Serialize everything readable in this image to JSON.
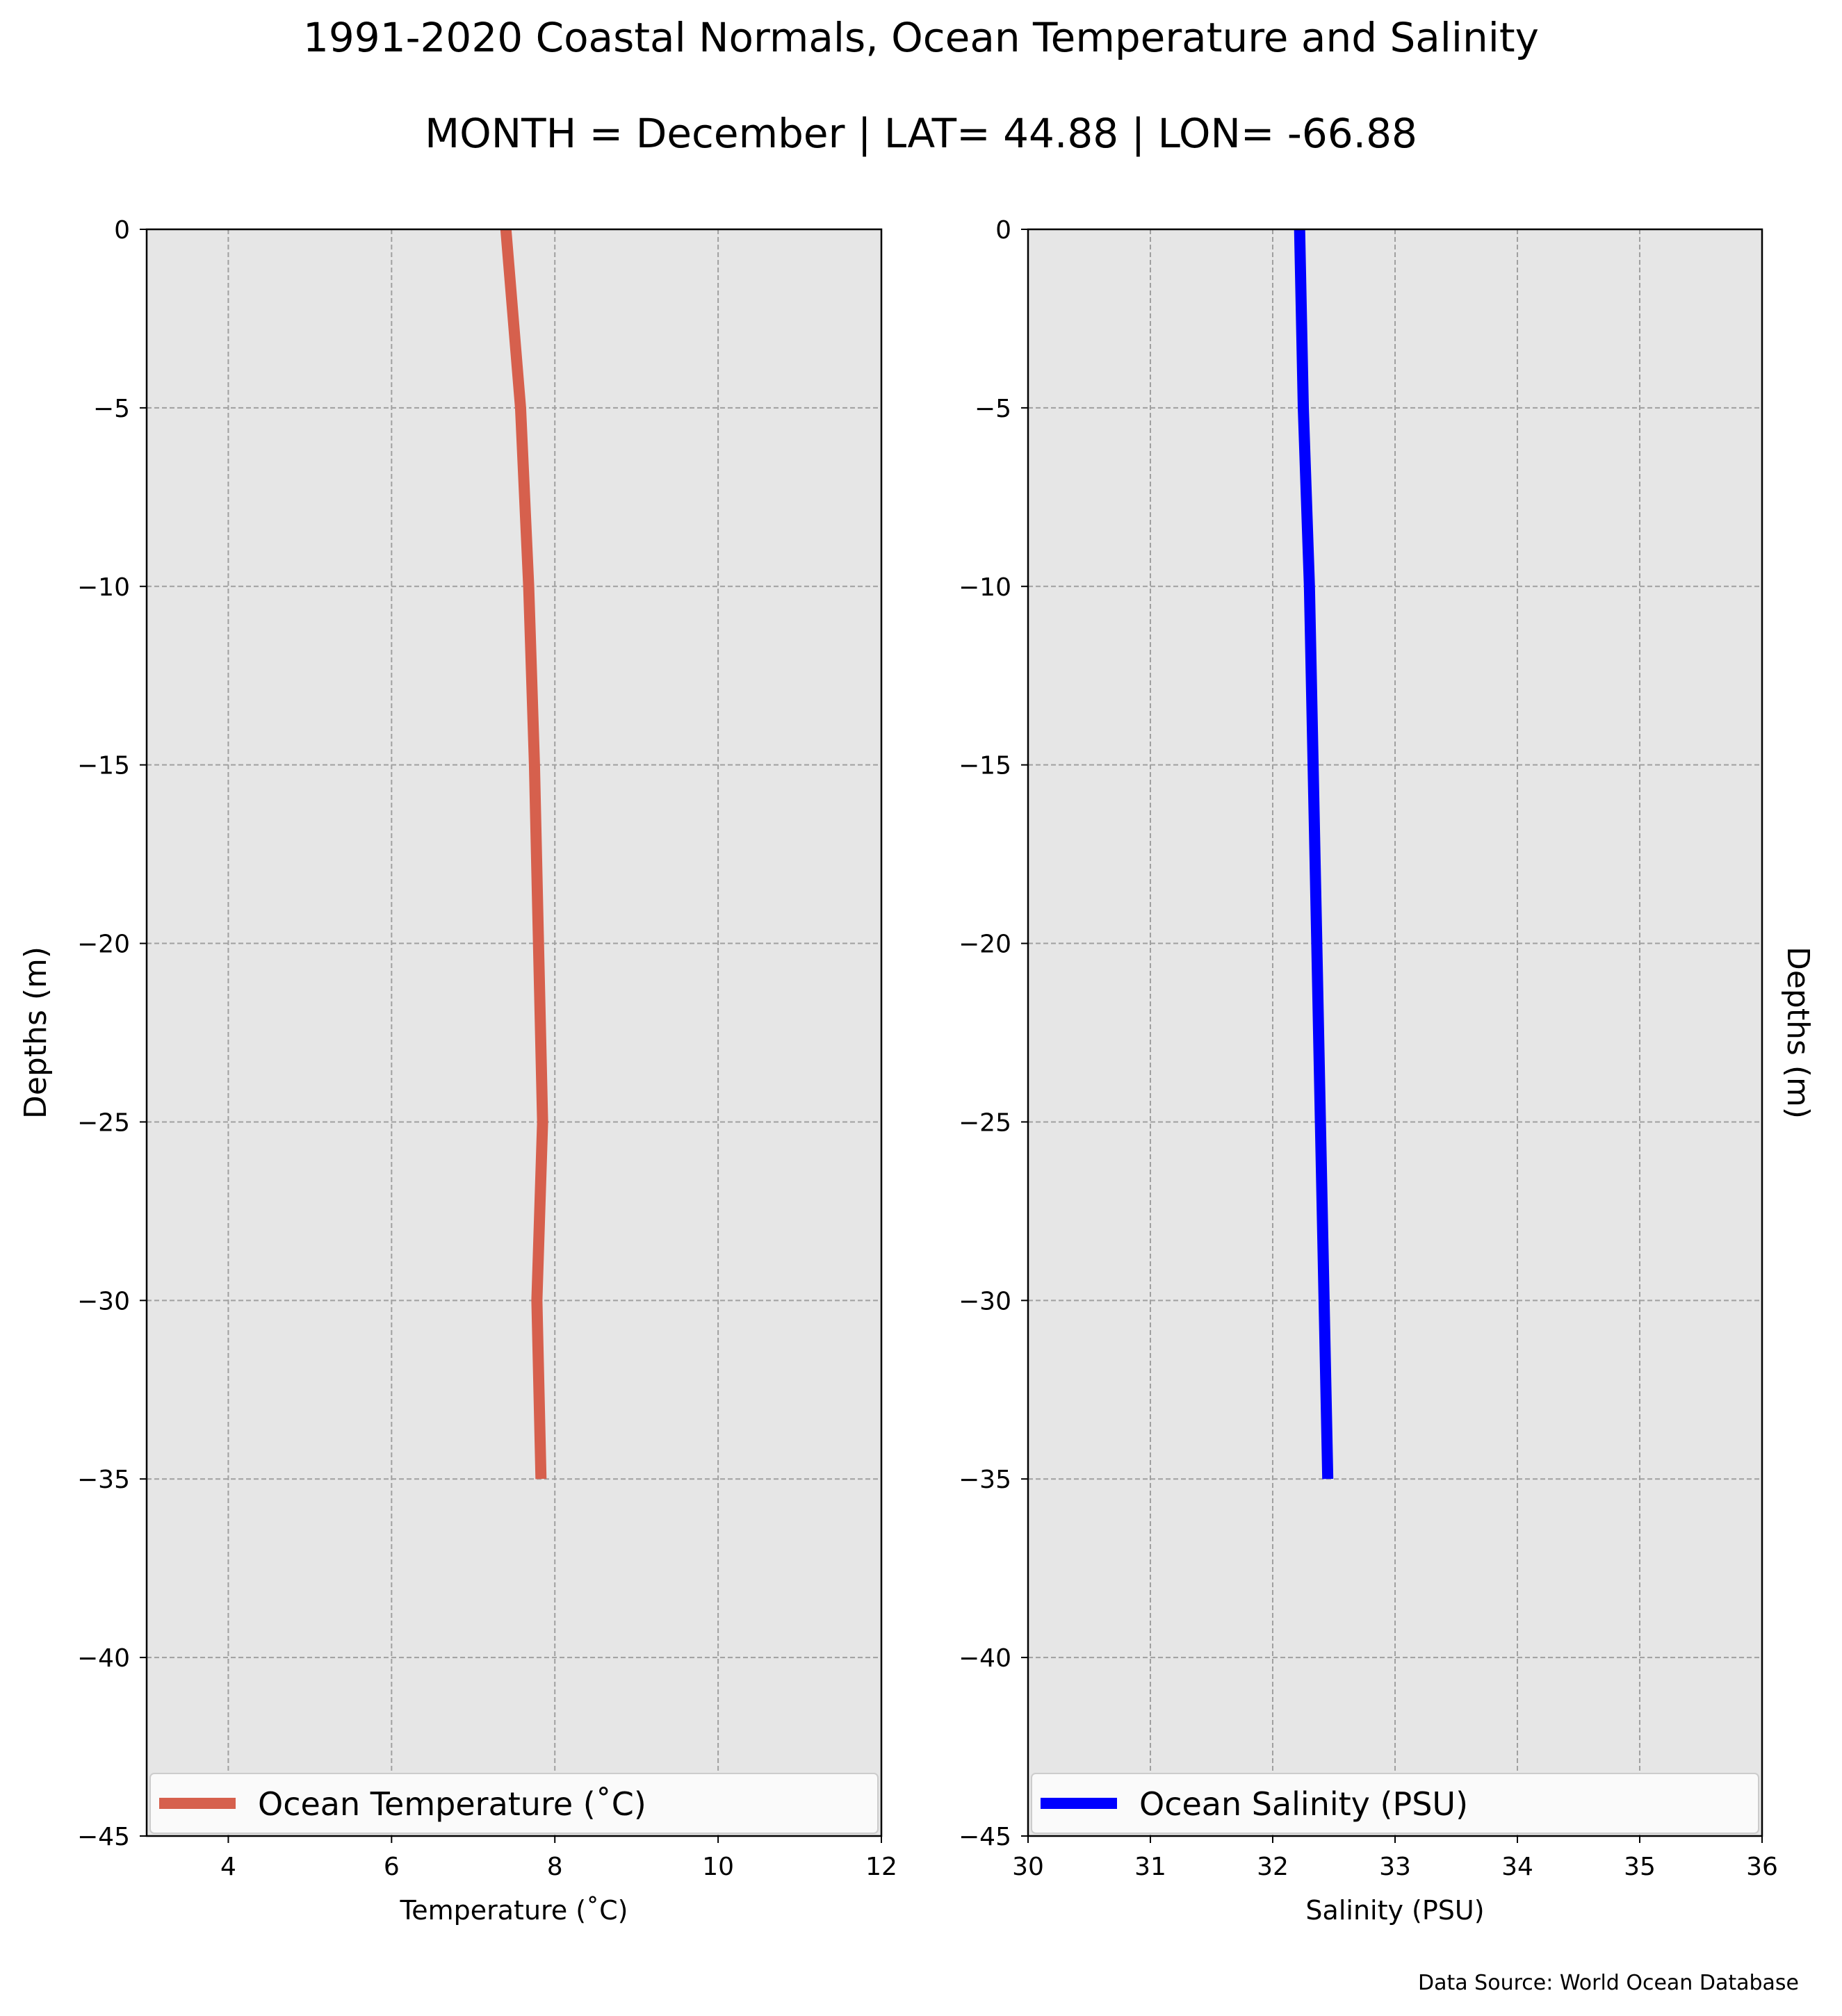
{
  "title": "1991-2020 Coastal Normals, Ocean Temperature and Salinity",
  "subtitle": "MONTH = December | LAT= 44.88 | LON= -66.88",
  "source": "Data Source: World Ocean Database",
  "chart_data": [
    {
      "type": "line",
      "xlabel": "Temperature ($^\\circ$C)",
      "xlabel_display": "Temperature (˚C)",
      "ylabel": "Depths (m)",
      "xlim": [
        3,
        12
      ],
      "ylim": [
        -45,
        0
      ],
      "xticks": [
        4,
        6,
        8,
        10,
        12
      ],
      "xtick_labels": [
        "4",
        "6",
        "8",
        "10",
        "12"
      ],
      "yticks": [
        0,
        -5,
        -10,
        -15,
        -20,
        -25,
        -30,
        -35,
        -40,
        -45
      ],
      "ytick_labels": [
        "0",
        "−5",
        "−10",
        "−15",
        "−20",
        "−25",
        "−30",
        "−35",
        "−40",
        "−45"
      ],
      "grid": true,
      "legend": "bottom",
      "series": [
        {
          "name": "Ocean Temperature (˚C)",
          "color": "#d6604d",
          "x": [
            7.4,
            7.58,
            7.68,
            7.75,
            7.8,
            7.85,
            7.78,
            7.83
          ],
          "y": [
            0,
            -5,
            -10,
            -15,
            -20,
            -25,
            -30,
            -35
          ]
        }
      ]
    },
    {
      "type": "line",
      "xlabel": "Salinity (PSU)",
      "ylabel": "Depths (m)",
      "xlim": [
        30,
        36
      ],
      "ylim": [
        -45,
        0
      ],
      "xticks": [
        30,
        31,
        32,
        33,
        34,
        35,
        36
      ],
      "xtick_labels": [
        "30",
        "31",
        "32",
        "33",
        "34",
        "35",
        "36"
      ],
      "yticks": [
        0,
        -5,
        -10,
        -15,
        -20,
        -25,
        -30,
        -35,
        -40,
        -45
      ],
      "ytick_labels": [
        "0",
        "−5",
        "−10",
        "−15",
        "−20",
        "−25",
        "−30",
        "−35",
        "−40",
        "−45"
      ],
      "grid": true,
      "legend": "bottom",
      "series": [
        {
          "name": "Ocean Salinity (PSU)",
          "color": "#0000ff",
          "x": [
            32.22,
            32.25,
            32.3,
            32.33,
            32.36,
            32.39,
            32.42,
            32.45
          ],
          "y": [
            0,
            -5,
            -10,
            -15,
            -20,
            -25,
            -30,
            -35
          ]
        }
      ]
    }
  ]
}
